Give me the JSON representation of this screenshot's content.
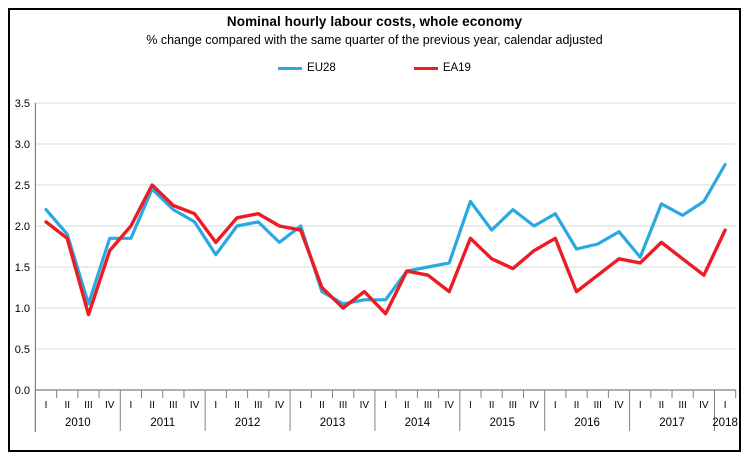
{
  "chart_data": {
    "type": "line",
    "title": "Nominal hourly labour costs, whole economy",
    "subtitle": "% change compared with the same quarter of the previous year, calendar adjusted",
    "legend_position": "top-center",
    "grid": true,
    "ylim": [
      0.0,
      3.5
    ],
    "ytick_step": 0.5,
    "ytick_labels": [
      "0.0",
      "0.5",
      "1.0",
      "1.5",
      "2.0",
      "2.5",
      "3.0",
      "3.5"
    ],
    "x_axis": {
      "years": [
        {
          "year": "2010",
          "quarters": [
            "I",
            "II",
            "III",
            "IV"
          ]
        },
        {
          "year": "2011",
          "quarters": [
            "I",
            "II",
            "III",
            "IV"
          ]
        },
        {
          "year": "2012",
          "quarters": [
            "I",
            "II",
            "III",
            "IV"
          ]
        },
        {
          "year": "2013",
          "quarters": [
            "I",
            "II",
            "III",
            "IV"
          ]
        },
        {
          "year": "2014",
          "quarters": [
            "I",
            "II",
            "III",
            "IV"
          ]
        },
        {
          "year": "2015",
          "quarters": [
            "I",
            "II",
            "III",
            "IV"
          ]
        },
        {
          "year": "2016",
          "quarters": [
            "I",
            "II",
            "III",
            "IV"
          ]
        },
        {
          "year": "2017",
          "quarters": [
            "I",
            "II",
            "III",
            "IV"
          ]
        },
        {
          "year": "2018",
          "quarters": [
            "I"
          ]
        }
      ]
    },
    "series": [
      {
        "name": "EU28",
        "color": "#29A9E0",
        "values": [
          2.2,
          1.9,
          1.05,
          1.85,
          1.85,
          2.45,
          2.2,
          2.05,
          1.65,
          2.0,
          2.05,
          1.8,
          2.0,
          1.2,
          1.05,
          1.1,
          1.1,
          1.45,
          1.5,
          1.55,
          2.3,
          1.95,
          2.2,
          2.0,
          2.15,
          1.72,
          1.78,
          1.93,
          1.62,
          2.27,
          2.13,
          2.3,
          2.75
        ]
      },
      {
        "name": "EA19",
        "color": "#EC1C24",
        "values": [
          2.05,
          1.85,
          0.92,
          1.7,
          2.0,
          2.5,
          2.25,
          2.15,
          1.8,
          2.1,
          2.15,
          2.0,
          1.95,
          1.25,
          1.0,
          1.2,
          0.93,
          1.45,
          1.4,
          1.2,
          1.85,
          1.6,
          1.48,
          1.7,
          1.85,
          1.2,
          1.4,
          1.6,
          1.55,
          1.8,
          1.6,
          1.4,
          1.95
        ]
      }
    ],
    "colors": {
      "grid": "#D9D9D9",
      "axis": "#808080",
      "text": "#000000",
      "frame_border": "#000000",
      "background": "#FFFFFF"
    }
  }
}
